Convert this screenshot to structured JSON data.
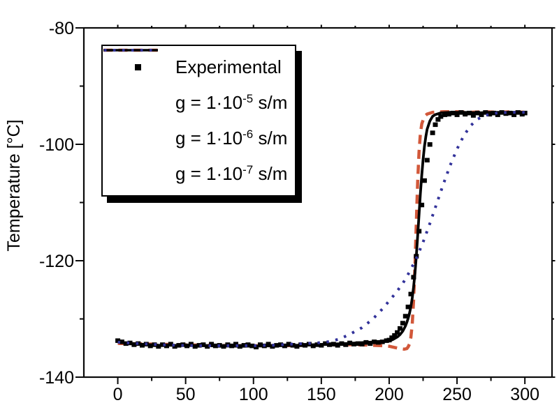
{
  "figure": {
    "background": "#ffffff"
  },
  "axes": {
    "x": {
      "label": "",
      "major_ticks": [
        0,
        50,
        100,
        150,
        200,
        250,
        300
      ],
      "minor_ticks": [
        25,
        75,
        125,
        175,
        225,
        275
      ]
    },
    "y": {
      "label": "Temperature [°C]",
      "major_ticks": [
        -80,
        -100,
        -120,
        -140
      ],
      "minor_ticks": [
        -90,
        -110,
        -130
      ]
    }
  },
  "legend": {
    "entries": [
      {
        "label": "Experimental"
      },
      {
        "prefix": "g = 1·10",
        "exponent": "-5",
        "suffix": " s/m"
      },
      {
        "prefix": "g = 1·10",
        "exponent": "-6",
        "suffix": " s/m"
      },
      {
        "prefix": "g = 1·10",
        "exponent": "-7",
        "suffix": " s/m"
      }
    ]
  },
  "colors": {
    "experimental": "#000000",
    "g1e5": "#d2583a",
    "g1e6": "#000000",
    "g1e7": "#32329a",
    "axis": "#0a0a0a"
  },
  "chart_data": {
    "type": "line",
    "title": "",
    "xlabel": "",
    "ylabel": "Temperature [°C]",
    "xlim": [
      -25,
      320
    ],
    "ylim": [
      -140,
      -80
    ],
    "x_ticks": [
      0,
      50,
      100,
      150,
      200,
      250,
      300
    ],
    "y_ticks": [
      -140,
      -120,
      -100,
      -80
    ],
    "grid": false,
    "legend_position": "upper-left",
    "series": [
      {
        "name": "Experimental",
        "style": "scatter-square",
        "color": "#000000",
        "points": [
          [
            0,
            -133.7
          ],
          [
            3,
            -133.9
          ],
          [
            6,
            -134.2
          ],
          [
            9,
            -134.1
          ],
          [
            12,
            -134.4
          ],
          [
            15,
            -134.2
          ],
          [
            18,
            -134.5
          ],
          [
            21,
            -134.3
          ],
          [
            24,
            -134.6
          ],
          [
            27,
            -134.4
          ],
          [
            30,
            -134.7
          ],
          [
            33,
            -134.4
          ],
          [
            36,
            -134.6
          ],
          [
            39,
            -134.3
          ],
          [
            42,
            -134.7
          ],
          [
            45,
            -134.5
          ],
          [
            48,
            -134.4
          ],
          [
            51,
            -134.6
          ],
          [
            54,
            -134.3
          ],
          [
            57,
            -134.7
          ],
          [
            60,
            -134.5
          ],
          [
            63,
            -134.4
          ],
          [
            66,
            -134.7
          ],
          [
            69,
            -134.3
          ],
          [
            72,
            -134.6
          ],
          [
            75,
            -134.5
          ],
          [
            78,
            -134.7
          ],
          [
            81,
            -134.4
          ],
          [
            84,
            -134.6
          ],
          [
            87,
            -134.3
          ],
          [
            90,
            -134.7
          ],
          [
            93,
            -134.5
          ],
          [
            96,
            -134.4
          ],
          [
            99,
            -134.6
          ],
          [
            102,
            -134.8
          ],
          [
            105,
            -134.4
          ],
          [
            108,
            -134.6
          ],
          [
            111,
            -134.3
          ],
          [
            114,
            -134.7
          ],
          [
            117,
            -134.5
          ],
          [
            120,
            -134.4
          ],
          [
            123,
            -134.6
          ],
          [
            126,
            -134.3
          ],
          [
            129,
            -134.5
          ],
          [
            132,
            -134.7
          ],
          [
            135,
            -134.4
          ],
          [
            138,
            -134.5
          ],
          [
            141,
            -134.3
          ],
          [
            144,
            -134.6
          ],
          [
            147,
            -134.4
          ],
          [
            150,
            -134.5
          ],
          [
            153,
            -134.2
          ],
          [
            156,
            -134.4
          ],
          [
            159,
            -134.3
          ],
          [
            162,
            -134.5
          ],
          [
            165,
            -134.2
          ],
          [
            168,
            -134.4
          ],
          [
            171,
            -134.1
          ],
          [
            174,
            -134.3
          ],
          [
            177,
            -134.2
          ],
          [
            180,
            -134.3
          ],
          [
            183,
            -134.0
          ],
          [
            186,
            -134.2
          ],
          [
            189,
            -133.9
          ],
          [
            192,
            -134.0
          ],
          [
            195,
            -133.9
          ],
          [
            198,
            -133.7
          ],
          [
            200,
            -133.6
          ],
          [
            202,
            -133.2
          ],
          [
            204,
            -132.8
          ],
          [
            206,
            -132.3
          ],
          [
            208,
            -131.6
          ],
          [
            210,
            -130.7
          ],
          [
            212,
            -129.5
          ],
          [
            214,
            -127.9
          ],
          [
            216,
            -125.7
          ],
          [
            218,
            -122.8
          ],
          [
            220,
            -119.2
          ],
          [
            222,
            -114.9
          ],
          [
            224,
            -110.4
          ],
          [
            226,
            -106.2
          ],
          [
            228,
            -102.7
          ],
          [
            230,
            -100.0
          ],
          [
            232,
            -98.0
          ],
          [
            234,
            -96.6
          ],
          [
            236,
            -95.7
          ],
          [
            238,
            -95.2
          ],
          [
            241,
            -94.9
          ],
          [
            244,
            -94.8
          ],
          [
            247,
            -94.6
          ],
          [
            250,
            -94.9
          ],
          [
            253,
            -94.5
          ],
          [
            256,
            -94.8
          ],
          [
            259,
            -94.6
          ],
          [
            262,
            -95.0
          ],
          [
            265,
            -94.6
          ],
          [
            268,
            -94.9
          ],
          [
            271,
            -94.5
          ],
          [
            274,
            -94.8
          ],
          [
            277,
            -94.6
          ],
          [
            280,
            -94.9
          ],
          [
            283,
            -94.5
          ],
          [
            286,
            -94.7
          ],
          [
            289,
            -94.6
          ],
          [
            292,
            -94.9
          ],
          [
            295,
            -94.5
          ],
          [
            298,
            -94.8
          ],
          [
            300,
            -94.6
          ]
        ]
      },
      {
        "name": "g = 1·10^-5 s/m",
        "style": "dashed",
        "color": "#d2583a",
        "points": [
          [
            0,
            -134.2
          ],
          [
            20,
            -134.3
          ],
          [
            40,
            -134.4
          ],
          [
            60,
            -134.5
          ],
          [
            90,
            -134.6
          ],
          [
            120,
            -134.6
          ],
          [
            150,
            -134.5
          ],
          [
            170,
            -134.4
          ],
          [
            185,
            -134.5
          ],
          [
            195,
            -134.6
          ],
          [
            200,
            -134.7
          ],
          [
            204,
            -134.9
          ],
          [
            208,
            -135.1
          ],
          [
            211,
            -135.2
          ],
          [
            213,
            -135.1
          ],
          [
            214,
            -134.8
          ],
          [
            215,
            -134.3
          ],
          [
            216,
            -133.2
          ],
          [
            217,
            -130.8
          ],
          [
            218,
            -126.8
          ],
          [
            219,
            -120.8
          ],
          [
            220,
            -113.5
          ],
          [
            221,
            -106.5
          ],
          [
            222,
            -101.3
          ],
          [
            223,
            -98.2
          ],
          [
            224,
            -96.5
          ],
          [
            226,
            -95.2
          ],
          [
            228,
            -94.8
          ],
          [
            232,
            -94.5
          ],
          [
            240,
            -94.4
          ],
          [
            250,
            -94.4
          ],
          [
            260,
            -94.5
          ],
          [
            270,
            -94.4
          ],
          [
            280,
            -94.5
          ],
          [
            290,
            -94.4
          ],
          [
            300,
            -94.5
          ]
        ]
      },
      {
        "name": "g = 1·10^-6 s/m",
        "style": "solid",
        "color": "#000000",
        "points": [
          [
            0,
            -134.0
          ],
          [
            15,
            -134.3
          ],
          [
            30,
            -134.5
          ],
          [
            60,
            -134.6
          ],
          [
            90,
            -134.7
          ],
          [
            120,
            -134.6
          ],
          [
            150,
            -134.4
          ],
          [
            170,
            -134.2
          ],
          [
            185,
            -134.0
          ],
          [
            193,
            -133.9
          ],
          [
            200,
            -133.8
          ],
          [
            203,
            -133.5
          ],
          [
            206,
            -133.1
          ],
          [
            208,
            -132.7
          ],
          [
            210,
            -132.1
          ],
          [
            212,
            -131.2
          ],
          [
            213,
            -130.6
          ],
          [
            214,
            -129.9
          ],
          [
            215,
            -129.0
          ],
          [
            216,
            -127.9
          ],
          [
            217,
            -126.4
          ],
          [
            218,
            -124.5
          ],
          [
            219,
            -122.1
          ],
          [
            220,
            -119.2
          ],
          [
            221,
            -115.8
          ],
          [
            222,
            -112.1
          ],
          [
            223,
            -108.5
          ],
          [
            224,
            -105.3
          ],
          [
            225,
            -102.6
          ],
          [
            226,
            -100.4
          ],
          [
            227,
            -98.7
          ],
          [
            228,
            -97.4
          ],
          [
            230,
            -96.0
          ],
          [
            232,
            -95.2
          ],
          [
            234,
            -94.9
          ],
          [
            238,
            -94.6
          ],
          [
            245,
            -94.5
          ],
          [
            255,
            -94.5
          ],
          [
            265,
            -94.6
          ],
          [
            275,
            -94.5
          ],
          [
            285,
            -94.5
          ],
          [
            300,
            -94.5
          ]
        ]
      },
      {
        "name": "g = 1·10^-7 s/m",
        "style": "dotted",
        "color": "#32329a",
        "points": [
          [
            0,
            -134.0
          ],
          [
            20,
            -134.3
          ],
          [
            40,
            -134.5
          ],
          [
            60,
            -134.6
          ],
          [
            80,
            -134.6
          ],
          [
            100,
            -134.6
          ],
          [
            115,
            -134.5
          ],
          [
            130,
            -134.3
          ],
          [
            140,
            -134.2
          ],
          [
            148,
            -134.1
          ],
          [
            156,
            -133.9
          ],
          [
            164,
            -133.4
          ],
          [
            172,
            -132.5
          ],
          [
            180,
            -131.5
          ],
          [
            188,
            -130.0
          ],
          [
            195,
            -128.3
          ],
          [
            200,
            -126.9
          ],
          [
            205,
            -125.5
          ],
          [
            210,
            -123.9
          ],
          [
            215,
            -121.9
          ],
          [
            220,
            -119.6
          ],
          [
            225,
            -116.8
          ],
          [
            230,
            -113.6
          ],
          [
            235,
            -110.2
          ],
          [
            240,
            -106.8
          ],
          [
            245,
            -103.6
          ],
          [
            250,
            -100.8
          ],
          [
            255,
            -98.5
          ],
          [
            260,
            -96.8
          ],
          [
            265,
            -95.7
          ],
          [
            270,
            -95.1
          ],
          [
            275,
            -94.8
          ],
          [
            280,
            -94.6
          ],
          [
            290,
            -94.5
          ],
          [
            300,
            -94.5
          ]
        ]
      }
    ]
  }
}
